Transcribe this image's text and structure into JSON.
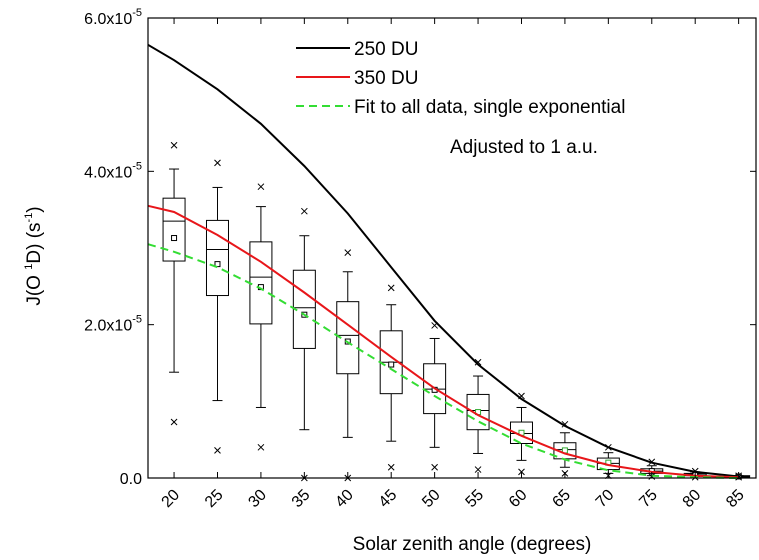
{
  "chart_data": {
    "type": "box",
    "xlabel": "Solar zenith angle (degrees)",
    "ylabel": {
      "main": "J(O ",
      "sup1": "1",
      "mid": "D) (s",
      "sup2": "-1",
      "end": ")"
    },
    "xlim": [
      17,
      87
    ],
    "ylim": [
      0,
      6e-05
    ],
    "x_ticks": [
      20,
      25,
      30,
      35,
      40,
      45,
      50,
      55,
      60,
      65,
      70,
      75,
      80,
      85
    ],
    "y_ticks": [
      {
        "value": 0,
        "base": "0.0",
        "exp": ""
      },
      {
        "value": 2e-05,
        "base": "2.0x10",
        "exp": "-5"
      },
      {
        "value": 4e-05,
        "base": "4.0x10",
        "exp": "-5"
      },
      {
        "value": 6e-05,
        "base": "6.0x10",
        "exp": "-5"
      }
    ],
    "annotation": "Adjusted to 1 a.u.",
    "lines": [
      {
        "name": "250 DU",
        "color": "#000000",
        "style": "solid",
        "x": [
          17,
          20,
          25,
          30,
          35,
          40,
          45,
          50,
          55,
          60,
          65,
          70,
          75,
          80,
          85
        ],
        "y": [
          5.65e-05,
          5.45e-05,
          5.07e-05,
          4.62e-05,
          4.07e-05,
          3.45e-05,
          2.75e-05,
          2.05e-05,
          1.48e-05,
          1.03e-05,
          6.8e-06,
          4e-06,
          2e-06,
          8e-07,
          2e-07
        ]
      },
      {
        "name": "350 DU",
        "color": "#e8161a",
        "style": "solid",
        "x": [
          17,
          20,
          25,
          30,
          35,
          40,
          45,
          50,
          55,
          60,
          65,
          70,
          75,
          80,
          85
        ],
        "y": [
          3.55e-05,
          3.47e-05,
          3.17e-05,
          2.82e-05,
          2.42e-05,
          2e-05,
          1.58e-05,
          1.17e-05,
          8.2e-06,
          5.5e-06,
          3.2e-06,
          1.7e-06,
          8e-07,
          3e-07,
          1e-07
        ]
      },
      {
        "name": "Fit to all data, single exponential",
        "color": "#33dd33",
        "style": "dashed",
        "x": [
          17,
          20,
          25,
          30,
          35,
          40,
          45,
          50,
          55,
          60,
          65,
          70,
          75,
          80,
          85
        ],
        "y": [
          3.05e-05,
          2.95e-05,
          2.75e-05,
          2.47e-05,
          2.13e-05,
          1.77e-05,
          1.42e-05,
          1.07e-05,
          7.4e-06,
          4.5e-06,
          2.4e-06,
          1e-06,
          3e-07,
          1e-07,
          0.0
        ]
      }
    ],
    "boxes": [
      {
        "x": 20,
        "whisker_low": 1.38e-05,
        "q1": 2.83e-05,
        "median": 3.35e-05,
        "q3": 3.65e-05,
        "whisker_high": 4.03e-05,
        "mean": 3.13e-05,
        "outliers": [
          7.3e-06,
          4.34e-05
        ]
      },
      {
        "x": 25,
        "whisker_low": 1.01e-05,
        "q1": 2.38e-05,
        "median": 2.98e-05,
        "q3": 3.36e-05,
        "whisker_high": 3.79e-05,
        "mean": 2.79e-05,
        "outliers": [
          3.6e-06,
          4.11e-05
        ]
      },
      {
        "x": 30,
        "whisker_low": 9.2e-06,
        "q1": 2.01e-05,
        "median": 2.62e-05,
        "q3": 3.08e-05,
        "whisker_high": 3.54e-05,
        "mean": 2.49e-05,
        "outliers": [
          4e-06,
          3.8e-05
        ]
      },
      {
        "x": 35,
        "whisker_low": 6.3e-06,
        "q1": 1.69e-05,
        "median": 2.22e-05,
        "q3": 2.71e-05,
        "whisker_high": 3.16e-05,
        "mean": 2.13e-05,
        "outliers": [
          0.0,
          3.48e-05
        ]
      },
      {
        "x": 40,
        "whisker_low": 5.3e-06,
        "q1": 1.36e-05,
        "median": 1.86e-05,
        "q3": 2.3e-05,
        "whisker_high": 2.69e-05,
        "mean": 1.78e-05,
        "outliers": [
          0.0,
          2.94e-05
        ]
      },
      {
        "x": 45,
        "whisker_low": 4.8e-06,
        "q1": 1.1e-05,
        "median": 1.51e-05,
        "q3": 1.92e-05,
        "whisker_high": 2.26e-05,
        "mean": 1.48e-05,
        "outliers": [
          1.4e-06,
          2.48e-05
        ]
      },
      {
        "x": 50,
        "whisker_low": 4e-06,
        "q1": 8.4e-06,
        "median": 1.16e-05,
        "q3": 1.49e-05,
        "whisker_high": 1.82e-05,
        "mean": 1.15e-05,
        "outliers": [
          1.4e-06,
          1.99e-05
        ]
      },
      {
        "x": 55,
        "whisker_low": 3.2e-06,
        "q1": 6.3e-06,
        "median": 8.8e-06,
        "q3": 1.09e-05,
        "whisker_high": 1.33e-05,
        "mean": 8.6e-06,
        "outliers": [
          1.1e-06,
          1.51e-05
        ]
      },
      {
        "x": 60,
        "whisker_low": 2.3e-06,
        "q1": 4.5e-06,
        "median": 5.8e-06,
        "q3": 7.3e-06,
        "whisker_high": 9.2e-06,
        "mean": 5.9e-06,
        "outliers": [
          8e-07,
          1.07e-05
        ]
      },
      {
        "x": 65,
        "whisker_low": 1.4e-06,
        "q1": 2.5e-06,
        "median": 3.7e-06,
        "q3": 4.6e-06,
        "whisker_high": 5.9e-06,
        "mean": 3.6e-06,
        "outliers": [
          6e-07,
          7e-06
        ]
      },
      {
        "x": 70,
        "whisker_low": 6e-07,
        "q1": 1.1e-06,
        "median": 1.9e-06,
        "q3": 2.6e-06,
        "whisker_high": 3.3e-06,
        "mean": 2e-06,
        "outliers": [
          3e-07,
          4e-06
        ]
      },
      {
        "x": 75,
        "whisker_low": 3e-07,
        "q1": 6e-07,
        "median": 9e-07,
        "q3": 1.2e-06,
        "whisker_high": 1.6e-06,
        "mean": 9e-07,
        "outliers": [
          2e-07,
          2.1e-06
        ]
      },
      {
        "x": 80,
        "whisker_low": 2e-07,
        "q1": 3e-07,
        "median": 5e-07,
        "q3": 6e-07,
        "whisker_high": 8e-07,
        "mean": 5e-07,
        "outliers": [
          1e-07,
          9e-07
        ]
      },
      {
        "x": 85,
        "whisker_low": 1e-07,
        "q1": 1e-07,
        "median": 2e-07,
        "q3": 3e-07,
        "whisker_high": 3e-07,
        "mean": 2e-07,
        "outliers": [
          1e-07,
          3e-07
        ]
      }
    ],
    "colors": {
      "box": "#000000",
      "mean_marker_default": "#000000",
      "mean_marker_green": "#33aa33"
    }
  }
}
